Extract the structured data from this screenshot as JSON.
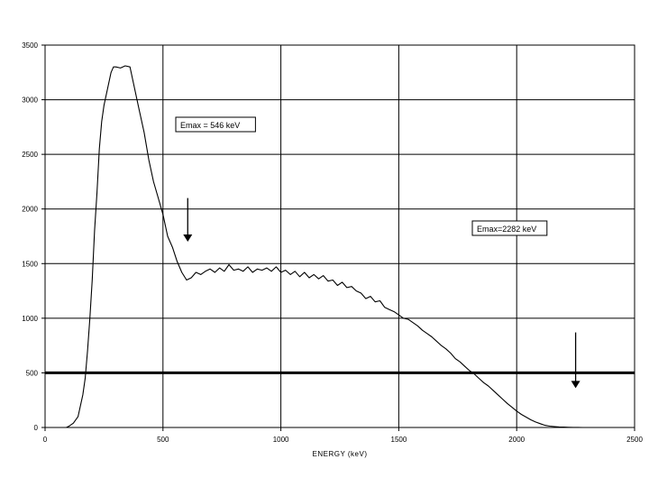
{
  "chart_data": {
    "type": "line",
    "title": "",
    "xlabel": "ENERGY (keV)",
    "ylabel": "",
    "xlim": [
      0,
      2500
    ],
    "ylim": [
      0,
      3500
    ],
    "grid": true,
    "x_ticks": [
      0,
      500,
      1000,
      1500,
      2000,
      2500
    ],
    "y_ticks": [
      0,
      500,
      1000,
      1500,
      2000,
      2500,
      3000,
      3500
    ],
    "reference_line": {
      "y": 500
    },
    "annotations": [
      {
        "text": "Emax = 546 keV",
        "arrow_x": 605,
        "arrow_from_y": 2100,
        "arrow_to_y": 1700
      },
      {
        "text": "Emax=2282 keV",
        "arrow_x": 2250,
        "arrow_from_y": 870,
        "arrow_to_y": 360
      }
    ],
    "series": [
      {
        "x": [
          0,
          90,
          100,
          120,
          140,
          160,
          170,
          180,
          190,
          200,
          210,
          220,
          230,
          240,
          250,
          260,
          270,
          280,
          290,
          300,
          320,
          340,
          360,
          380,
          400,
          420,
          440,
          460,
          480,
          500,
          520,
          540,
          560,
          580,
          600,
          620,
          640,
          660,
          680,
          700,
          720,
          740,
          760,
          780,
          800,
          820,
          840,
          860,
          880,
          900,
          920,
          940,
          960,
          980,
          1000,
          1020,
          1040,
          1060,
          1080,
          1100,
          1120,
          1140,
          1160,
          1180,
          1200,
          1220,
          1240,
          1260,
          1280,
          1300,
          1320,
          1340,
          1360,
          1380,
          1400,
          1420,
          1440,
          1460,
          1480,
          1500,
          1520,
          1540,
          1560,
          1580,
          1600,
          1620,
          1640,
          1660,
          1680,
          1700,
          1720,
          1740,
          1760,
          1780,
          1800,
          1820,
          1840,
          1860,
          1880,
          1900,
          1920,
          1940,
          1960,
          1980,
          2000,
          2020,
          2040,
          2060,
          2080,
          2100,
          2120,
          2140,
          2160,
          2180,
          2200,
          2220,
          2240,
          2260,
          2280,
          2300
        ],
        "values": [
          0,
          0,
          10,
          40,
          100,
          300,
          450,
          700,
          1000,
          1350,
          1800,
          2150,
          2550,
          2800,
          2950,
          3050,
          3150,
          3250,
          3300,
          3300,
          3290,
          3310,
          3300,
          3100,
          2900,
          2700,
          2450,
          2250,
          2100,
          1950,
          1750,
          1650,
          1520,
          1420,
          1350,
          1370,
          1420,
          1400,
          1430,
          1450,
          1420,
          1460,
          1430,
          1490,
          1440,
          1450,
          1430,
          1470,
          1420,
          1450,
          1440,
          1460,
          1430,
          1470,
          1420,
          1440,
          1400,
          1430,
          1380,
          1420,
          1370,
          1400,
          1360,
          1390,
          1340,
          1350,
          1300,
          1330,
          1280,
          1290,
          1250,
          1230,
          1180,
          1200,
          1150,
          1160,
          1100,
          1080,
          1060,
          1030,
          1000,
          990,
          960,
          930,
          890,
          860,
          830,
          790,
          750,
          720,
          680,
          630,
          600,
          560,
          520,
          490,
          450,
          410,
          380,
          340,
          300,
          260,
          220,
          185,
          150,
          120,
          95,
          70,
          50,
          35,
          20,
          12,
          8,
          5,
          3,
          2,
          1,
          1,
          0,
          0
        ]
      }
    ]
  }
}
